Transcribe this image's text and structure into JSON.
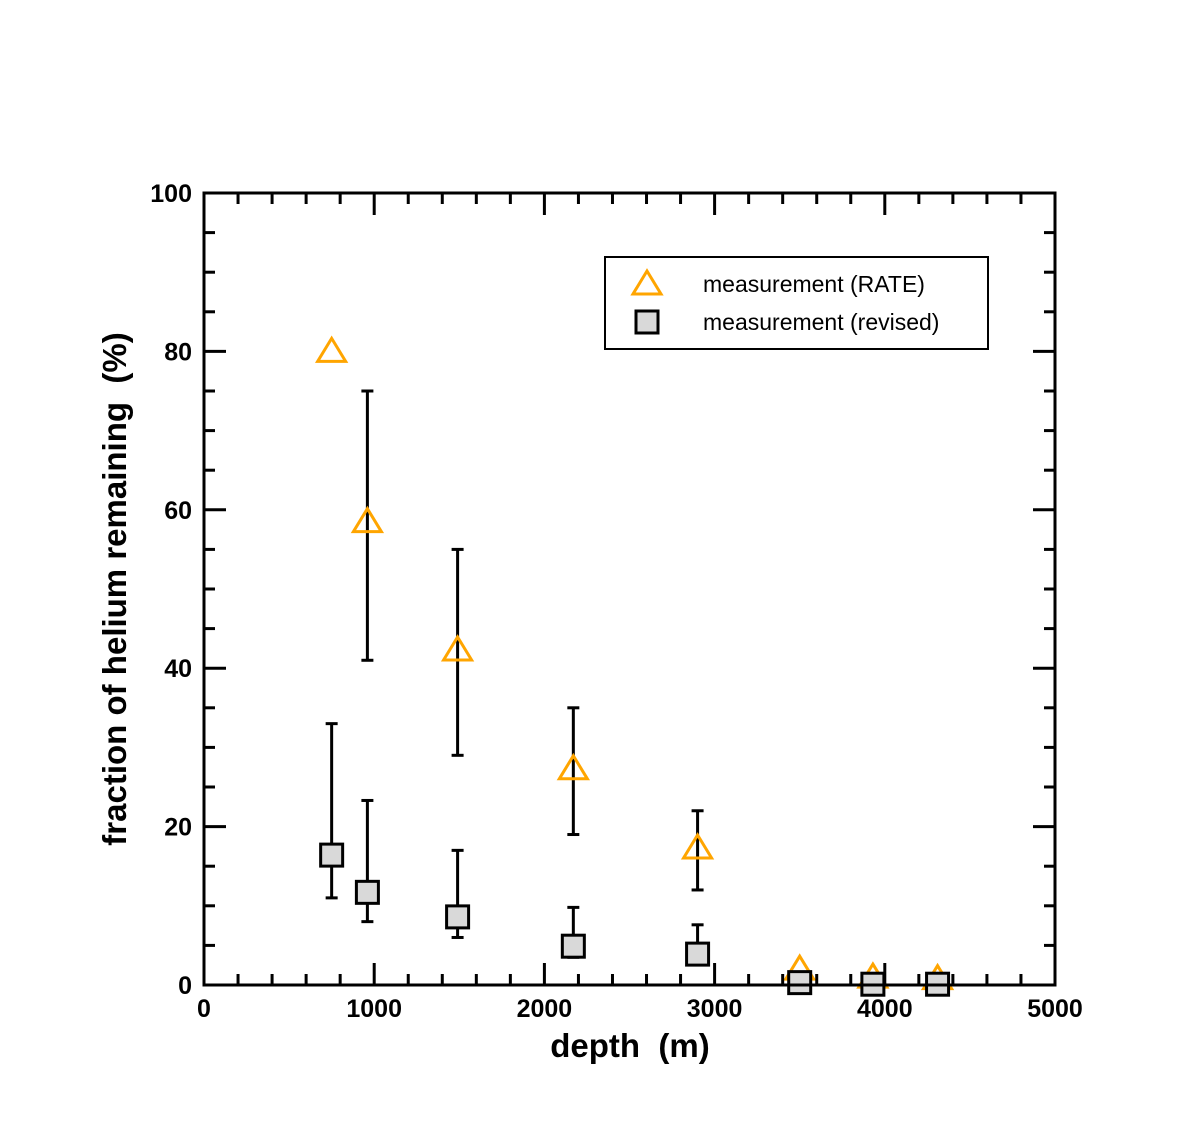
{
  "chart_data": {
    "type": "scatter",
    "title": "",
    "xlabel": "depth  (m)",
    "ylabel": "fraction of helium remaining  (%)",
    "xlim": [
      0,
      5000
    ],
    "ylim": [
      0,
      100
    ],
    "x_ticks": [
      "0",
      "1000",
      "2000",
      "3000",
      "4000",
      "5000"
    ],
    "y_ticks": [
      "0",
      "20",
      "40",
      "60",
      "80",
      "100"
    ],
    "grid": false,
    "legend_position": "top-right",
    "series": [
      {
        "name": "measurement (RATE)",
        "marker": "triangle-open",
        "color": "#FFA500",
        "x": [
          750,
          960,
          1490,
          2170,
          2900,
          3500,
          3930,
          4310
        ],
        "y": [
          80,
          58.5,
          42.3,
          27.3,
          17.3,
          2,
          1,
          0.8
        ],
        "err_low": [
          null,
          41,
          29,
          19,
          12,
          null,
          null,
          null
        ],
        "err_high": [
          null,
          75,
          55,
          35,
          22,
          null,
          null,
          null
        ]
      },
      {
        "name": "measurement (revised)",
        "marker": "square-filled",
        "color": "#D9D9D9",
        "x": [
          750,
          960,
          1490,
          2170,
          2900,
          3500,
          3930,
          4310
        ],
        "y": [
          16.4,
          11.7,
          8.6,
          4.9,
          3.9,
          0.3,
          0.1,
          0.1
        ],
        "err_low": [
          11,
          8,
          6,
          3.5,
          3.5,
          null,
          null,
          null
        ],
        "err_high": [
          33,
          23.3,
          17,
          9.8,
          7.6,
          null,
          null,
          null
        ]
      }
    ]
  }
}
